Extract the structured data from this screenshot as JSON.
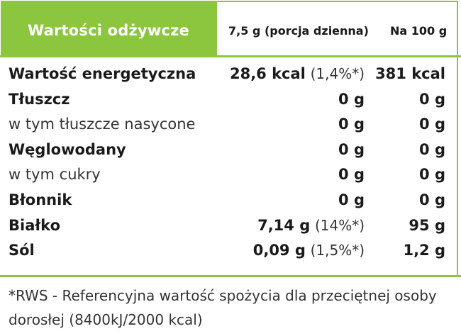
{
  "header": {
    "title": "Wartości odżywcze",
    "col_portion": "7,5 g (porcja dzienna)",
    "col_100g": "Na 100 g"
  },
  "rows": [
    {
      "label": "Wartość energetyczna",
      "portion_value": "28,6 kcal",
      "portion_pct": "(1,4%*)",
      "per100": "381 kcal"
    },
    {
      "label": "Tłuszcz",
      "portion_value": "0 g",
      "portion_pct": "",
      "per100": "0 g"
    },
    {
      "label": "w tym tłuszcze nasycone",
      "portion_value": "0 g",
      "portion_pct": "",
      "per100": "0 g"
    },
    {
      "label": "Węglowodany",
      "portion_value": "0 g",
      "portion_pct": "",
      "per100": "0 g"
    },
    {
      "label": "w tym cukry",
      "portion_value": "0 g",
      "portion_pct": "",
      "per100": "0 g"
    },
    {
      "label": "Błonnik",
      "portion_value": "0 g",
      "portion_pct": "",
      "per100": "0 g"
    },
    {
      "label": "Białko",
      "portion_value": "7,14 g",
      "portion_pct": "(14%*)",
      "per100": "95 g"
    },
    {
      "label": "Sól",
      "portion_value": "0,09 g",
      "portion_pct": "(1,5%*)",
      "per100": "1,2 g"
    }
  ],
  "footnote": "*RWS - Referencyjna wartość spożycia dla przeciętnej osoby dorosłej (8400kJ/2000 kcal)",
  "colors": {
    "accent": "#8cc63f"
  }
}
